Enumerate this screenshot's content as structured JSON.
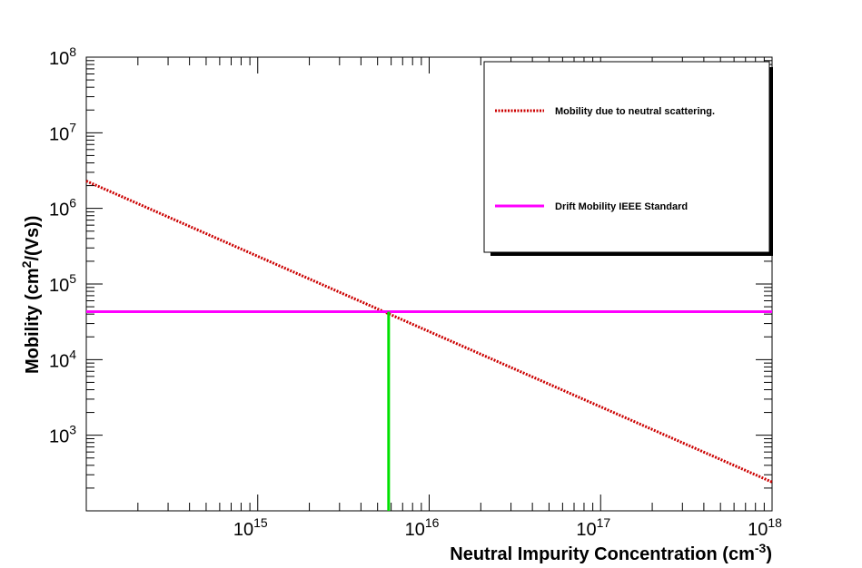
{
  "chart_data": {
    "type": "line",
    "title": "",
    "xlabel": {
      "main": "Neutral Impurity Concentration (cm",
      "sup": "-3",
      "tail": ")"
    },
    "ylabel": {
      "main": "Mobility (cm",
      "sup": "2",
      "tail": "/(Vs))"
    },
    "x_scale": "log",
    "y_scale": "log",
    "xlim": [
      100000000000000.0,
      1e+18
    ],
    "ylim": [
      100,
      100000000.0
    ],
    "x_ticks": [
      {
        "base": "10",
        "exp": "15",
        "value": 1000000000000000.0
      },
      {
        "base": "10",
        "exp": "16",
        "value": 1e+16
      },
      {
        "base": "10",
        "exp": "17",
        "value": 1e+17
      },
      {
        "base": "10",
        "exp": "18",
        "value": 1e+18
      }
    ],
    "y_ticks": [
      {
        "base": "10",
        "exp": "3",
        "value": 1000
      },
      {
        "base": "10",
        "exp": "4",
        "value": 10000
      },
      {
        "base": "10",
        "exp": "5",
        "value": 100000
      },
      {
        "base": "10",
        "exp": "6",
        "value": 1000000
      },
      {
        "base": "10",
        "exp": "7",
        "value": 10000000
      },
      {
        "base": "10",
        "exp": "8",
        "value": 100000000
      }
    ],
    "grid": false,
    "legend_position": "top-right",
    "series": [
      {
        "name": "Mobility due to neutral scattering.",
        "style": "dotted",
        "color": "#cc0000",
        "x": [
          100000000000000.0,
          1e+18
        ],
        "y": [
          2300000,
          240
        ]
      },
      {
        "name": "Drift Mobility IEEE Standard",
        "style": "solid",
        "color": "#ff00ff",
        "x": [
          100000000000000.0,
          1e+18
        ],
        "y": [
          43000,
          43000
        ]
      }
    ],
    "annotations": [
      {
        "type": "vertical-line",
        "color": "#00e000",
        "x": 5800000000000000.0,
        "y_from": 100,
        "y_to": 43000
      }
    ]
  }
}
